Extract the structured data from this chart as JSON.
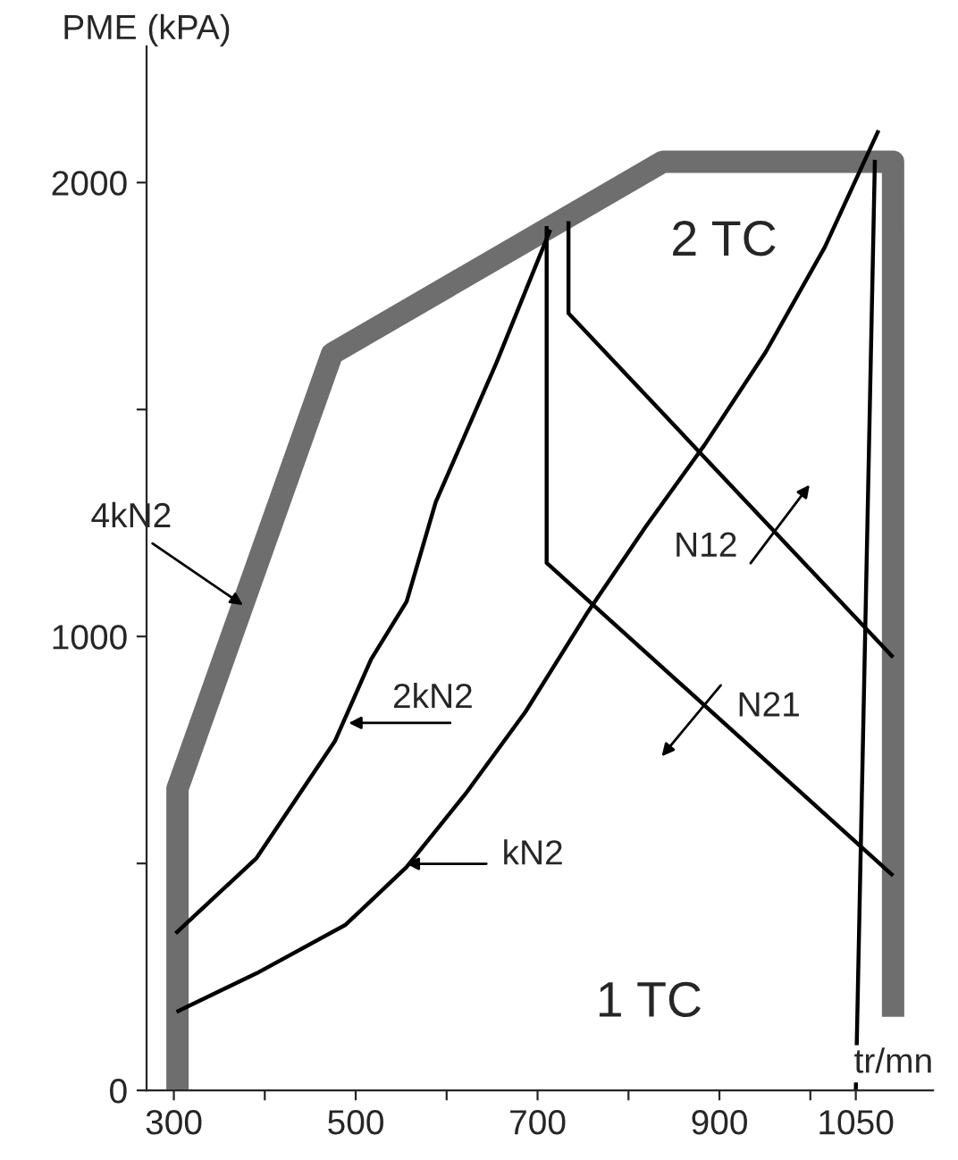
{
  "chart_data": {
    "type": "line",
    "ylabel": "PME (kPA)",
    "xlabel": "tr/mn",
    "xlim": [
      270,
      1135
    ],
    "ylim": [
      0,
      2300
    ],
    "xticks": [
      300,
      {
        "value": 400,
        "label": null
      },
      500,
      {
        "value": 600,
        "label": null
      },
      700,
      {
        "value": 800,
        "label": null
      },
      900,
      {
        "value": 1000,
        "label": null
      },
      1050
    ],
    "yticks": [
      0,
      {
        "value": 500,
        "label": null
      },
      1000,
      {
        "value": 1500,
        "label": null
      },
      2000
    ],
    "grid": false,
    "marker": "none",
    "line_style": "solid",
    "series": [
      {
        "color": "#6e6e6e",
        "x": [
          304,
          304,
          474,
          838,
          1091,
          1091
        ],
        "values": [
          0,
          665,
          1623,
          2046,
          2046,
          162
        ]
      },
      {
        "color": "#000000",
        "x": [
          303,
          391,
          489,
          556,
          621,
          687,
          754,
          819,
          884,
          951,
          1016,
          1075
        ],
        "values": [
          173,
          258,
          365,
          492,
          654,
          835,
          1050,
          1242,
          1423,
          1627,
          1858,
          2115
        ]
      },
      {
        "color": "#000000",
        "x": [
          302,
          391,
          477,
          517,
          556,
          588,
          655,
          714
        ],
        "values": [
          346,
          512,
          769,
          950,
          1077,
          1296,
          1604,
          1896
        ]
      },
      {
        "color": "#000000",
        "x": [
          734,
          734,
          1091
        ],
        "values": [
          1915,
          1712,
          954
        ]
      },
      {
        "color": "#000000",
        "x": [
          710,
          710,
          1091
        ],
        "values": [
          1904,
          1162,
          473
        ]
      },
      {
        "color": "#000000",
        "x": [
          1050,
          1071
        ],
        "values": [
          0,
          2050
        ]
      }
    ],
    "annotations": [
      {
        "text": "4kN2",
        "x": 376,
        "y": 1069
      },
      "2kN2",
      "kN2",
      "N12",
      "N21",
      "2 TC",
      "1 TC"
    ]
  }
}
